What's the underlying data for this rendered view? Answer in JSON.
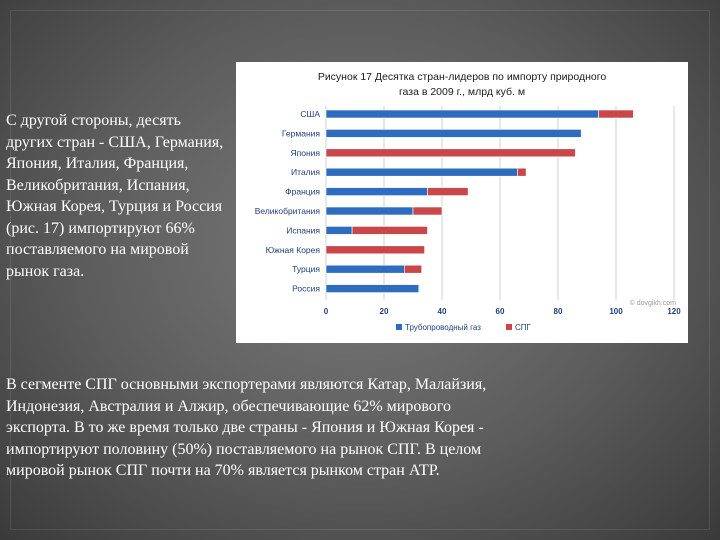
{
  "slide": {
    "top_paragraph": "С другой стороны, десять других стран - США, Германия, Япония, Италия, Франция, Великобритания, Испания, Южная Корея, Турция и Россия (рис. 17) импортируют 66% поставляемого на мировой рынок газа.",
    "bottom_paragraph": "В сегменте СПГ основными экспортерами являются Катар, Малайзия, Индонезия, Австралия и Алжир, обеспечивающие 62% мирового экспорта. В то же время только две страны - Япония и Южная Корея - импортируют половину (50%) поставляемого на рынок СПГ. В целом мировой рынок СПГ почти на 70% является рынком стран АТР."
  },
  "chart_data": {
    "type": "bar",
    "orientation": "horizontal",
    "stacked": true,
    "title_lines": [
      "Рисунок 17 Десятка стран-лидеров по импорту природного",
      "газа в 2009 г., млрд куб. м"
    ],
    "categories": [
      "США",
      "Германия",
      "Япония",
      "Италия",
      "Франция",
      "Великобритания",
      "Испания",
      "Южная Корея",
      "Турция",
      "Россия"
    ],
    "series": [
      {
        "name": "Трубопроводный газ",
        "color": "#2e6cc0",
        "values": [
          94,
          88,
          0,
          66,
          35,
          30,
          9,
          0,
          27,
          32
        ]
      },
      {
        "name": "СПГ",
        "color": "#c9464a",
        "values": [
          12,
          0,
          86,
          3,
          14,
          10,
          26,
          34,
          6,
          0
        ]
      }
    ],
    "xlim": [
      0,
      120
    ],
    "xticks": [
      0,
      20,
      40,
      60,
      80,
      100,
      120
    ],
    "grid": true,
    "legend_position": "bottom",
    "credit": "© dovgikh.com"
  }
}
